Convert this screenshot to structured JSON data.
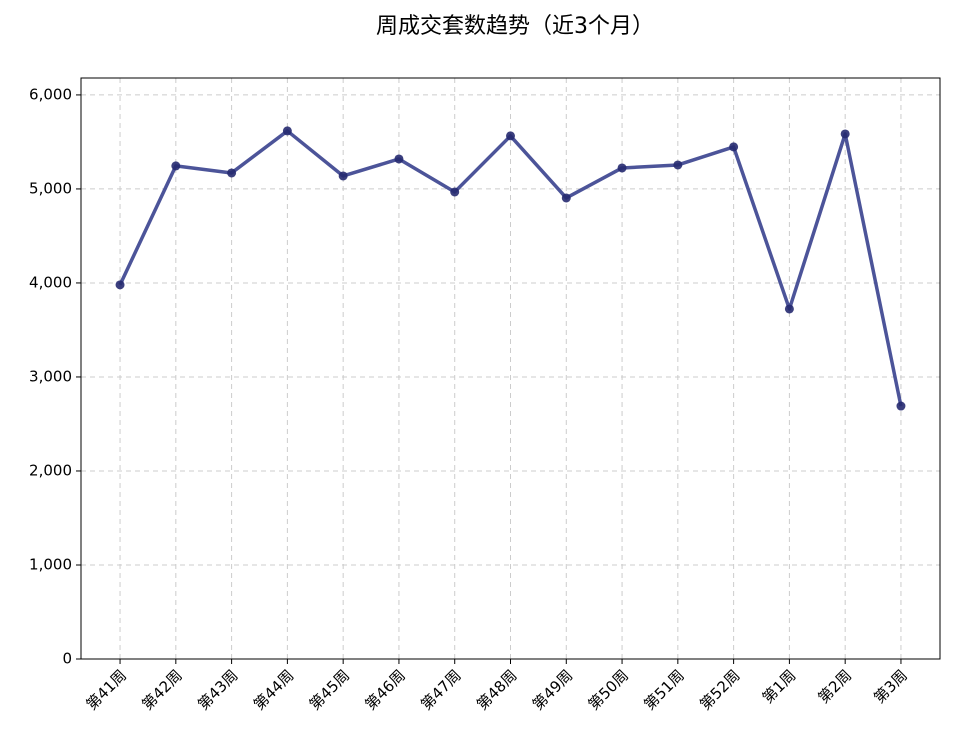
{
  "chart_data": {
    "type": "line",
    "title": "周成交套数趋势（近3个月）",
    "categories": [
      "第41周",
      "第42周",
      "第43周",
      "第44周",
      "第45周",
      "第46周",
      "第47周",
      "第48周",
      "第49周",
      "第50周",
      "第51周",
      "第52周",
      "第1周",
      "第2周",
      "第3周"
    ],
    "series": [
      {
        "name": "成交套数",
        "color": "#3d4590",
        "values": [
          3980,
          5245,
          5170,
          5617,
          5138,
          5319,
          4968,
          5564,
          4904,
          5223,
          5255,
          5447,
          3723,
          5585,
          2691
        ]
      }
    ],
    "ylim": [
      0,
      6180
    ],
    "yticks": [
      0,
      {
        "value": 1000,
        "label": "1,000"
      },
      {
        "value": 2000,
        "label": "2,000"
      },
      {
        "value": 3000,
        "label": "3,000"
      },
      {
        "value": 4000,
        "label": "4,000"
      },
      {
        "value": 5000,
        "label": "5,000"
      },
      {
        "value": 6000,
        "label": "6,000"
      }
    ],
    "grid": true
  }
}
